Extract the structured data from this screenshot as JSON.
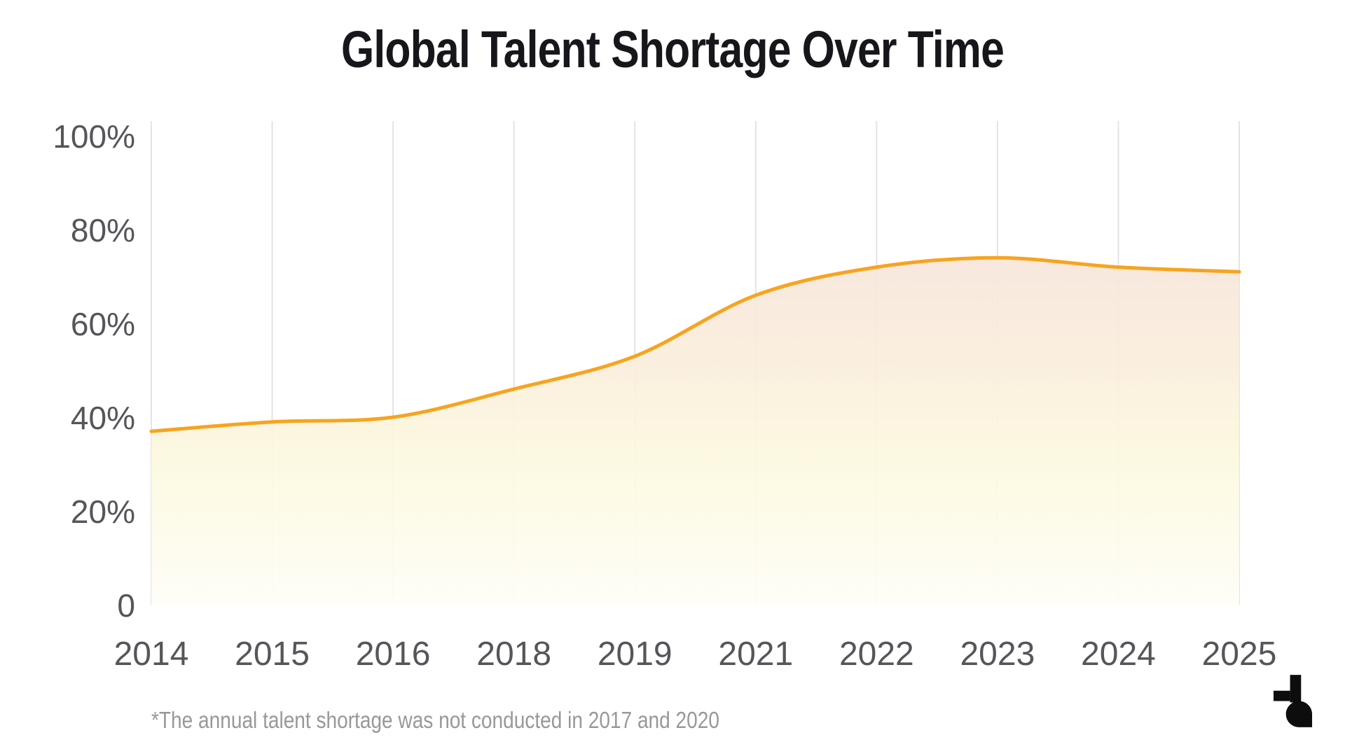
{
  "header": {
    "title": "Global Talent Shortage Over Time"
  },
  "chart_data": {
    "type": "area",
    "title": "Global Talent Shortage Over Time",
    "categories": [
      "2014",
      "2015",
      "2016",
      "2018",
      "2019",
      "2021",
      "2022",
      "2023",
      "2024",
      "2025"
    ],
    "values": [
      37,
      39,
      40,
      46,
      53,
      66,
      72,
      74,
      72,
      71
    ],
    "unit": "%",
    "xlabel": "",
    "ylabel": "",
    "ylim": [
      0,
      100
    ],
    "y_tick_values": [
      0,
      20,
      40,
      60,
      80,
      100
    ],
    "y_tick_labels": [
      "0",
      "20%",
      "40%",
      "60%",
      "80%",
      "100%"
    ],
    "grid": "vertical gridlines only, no horizontal gridlines",
    "legend": "none",
    "smoothing": "smoothed spline through points",
    "missing_periods": [
      "2017",
      "2020"
    ],
    "colors": {
      "line": "#F7A41D",
      "grid": "#E3E3E4",
      "tick_text": "#55555a",
      "title_text": "#17171b",
      "area_gradient_top": "#F7E5DB",
      "area_gradient_upper_mid": "#FAEEDC",
      "area_gradient_lower_mid": "#FCF8DF",
      "area_gradient_bottom": "#FFFEF8"
    }
  },
  "footnote": {
    "text": "*The annual talent shortage was not conducted in 2017 and 2020"
  },
  "logo": {
    "name": "stylized-t-brand-mark",
    "color": "#0d0d0d"
  }
}
